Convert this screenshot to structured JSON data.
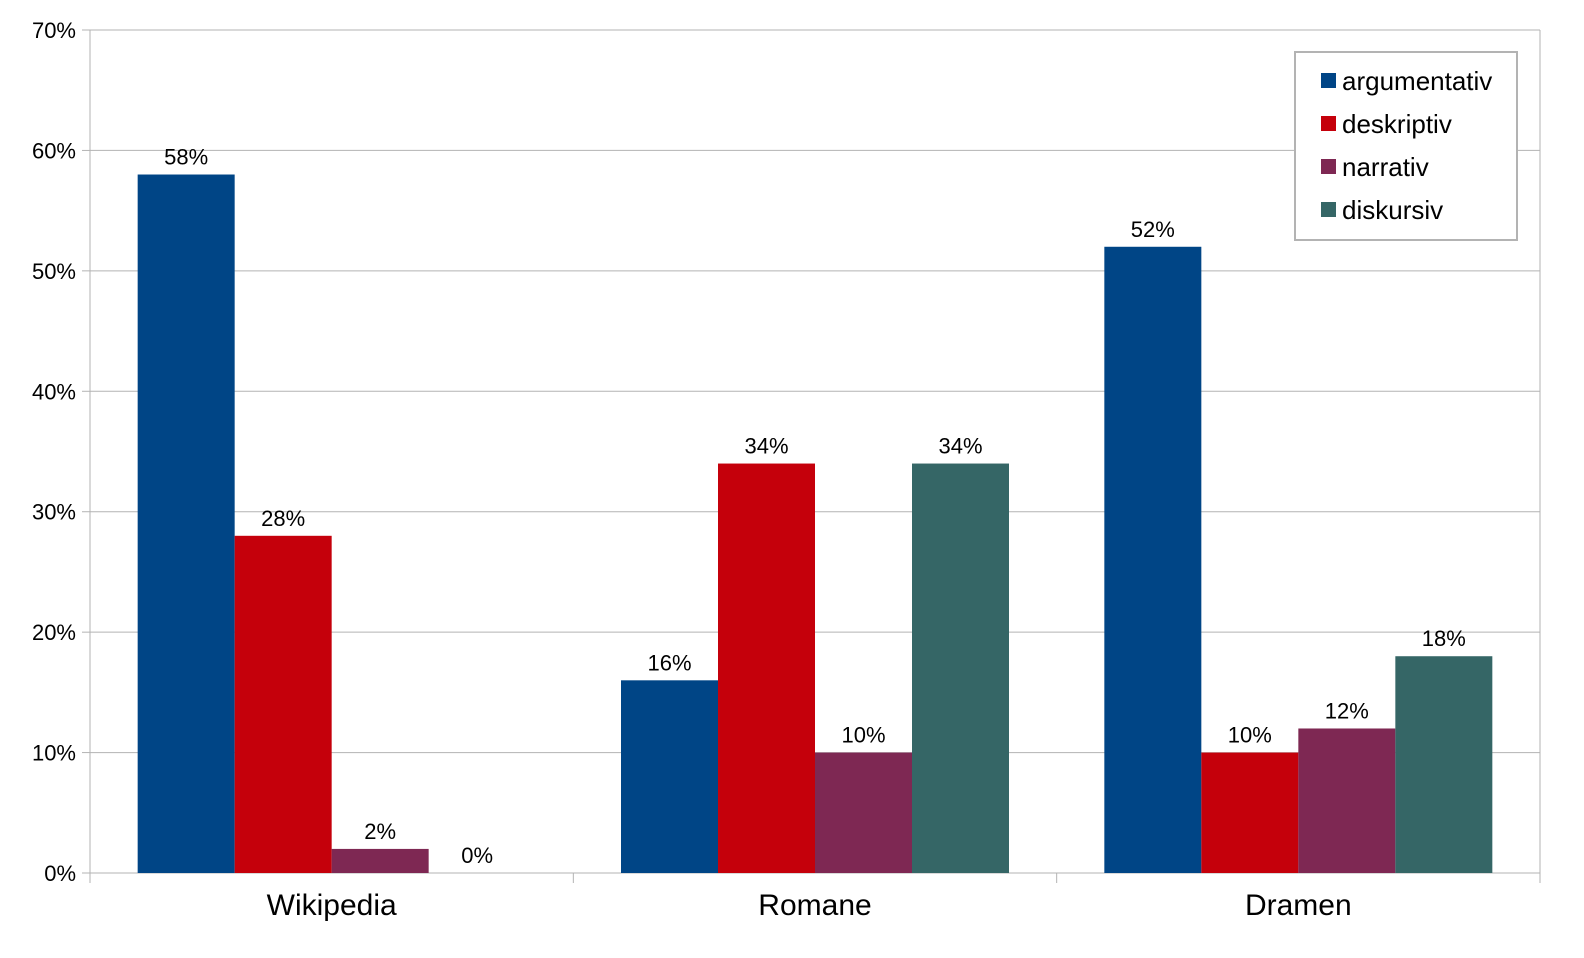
{
  "chart_data": {
    "type": "bar",
    "categories": [
      "Wikipedia",
      "Romane",
      "Dramen"
    ],
    "series": [
      {
        "name": "argumentativ",
        "color": "#004586",
        "values": [
          58,
          16,
          52
        ],
        "labels": [
          "58%",
          "16%",
          "52%"
        ]
      },
      {
        "name": "deskriptiv",
        "color": "#c5000b",
        "values": [
          28,
          34,
          10
        ],
        "labels": [
          "28%",
          "34%",
          "10%"
        ]
      },
      {
        "name": "narrativ",
        "color": "#7e2853",
        "values": [
          2,
          10,
          12
        ],
        "labels": [
          "2%",
          "10%",
          "12%"
        ]
      },
      {
        "name": "diskursiv",
        "color": "#356666",
        "values": [
          0,
          34,
          18
        ],
        "labels": [
          "0%",
          "34%",
          "18%"
        ]
      }
    ],
    "y_ticks": [
      0,
      10,
      20,
      30,
      40,
      50,
      60,
      70
    ],
    "y_tick_labels": [
      "0%",
      "10%",
      "20%",
      "30%",
      "40%",
      "50%",
      "60%",
      "70%"
    ],
    "ylim": [
      0,
      70
    ],
    "grid": true,
    "legend_position": "top-right",
    "title": "",
    "xlabel": "",
    "ylabel": ""
  }
}
